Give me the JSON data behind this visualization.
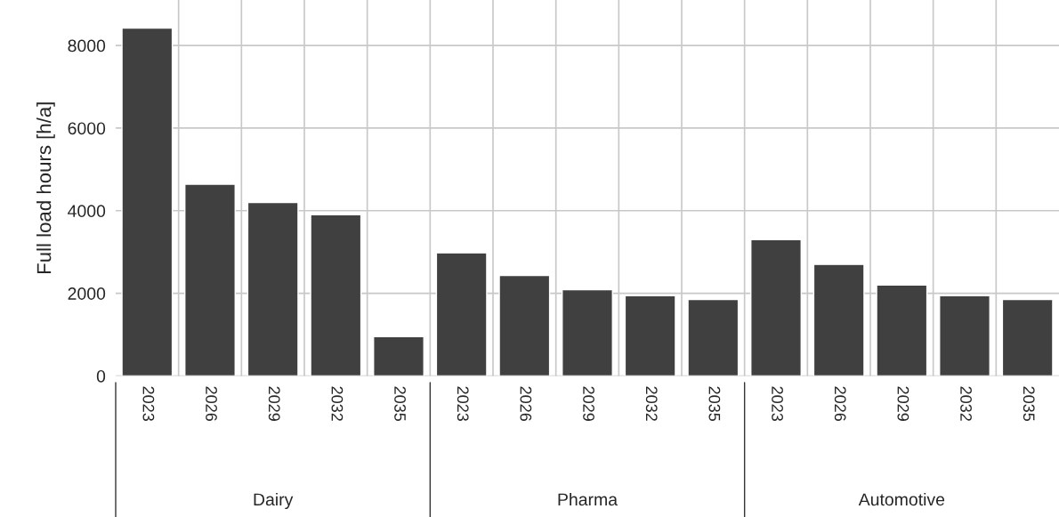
{
  "chart_data": {
    "type": "bar",
    "ylabel": "Full load hours [h/a]",
    "categories": [
      "2023",
      "2026",
      "2029",
      "2032",
      "2035",
      "2023",
      "2026",
      "2029",
      "2032",
      "2035",
      "2023",
      "2026",
      "2029",
      "2032",
      "2035"
    ],
    "values": [
      8420,
      4640,
      4200,
      3900,
      950,
      2980,
      2430,
      2090,
      1940,
      1850,
      3300,
      2700,
      2200,
      1940,
      1850
    ],
    "color": "#404040",
    "ylim": [
      0,
      9100
    ],
    "yticks": [
      0,
      2000,
      4000,
      6000,
      8000
    ],
    "grid": true,
    "annotations": [
      "Dairy",
      "Pharma",
      "Automotive"
    ]
  }
}
